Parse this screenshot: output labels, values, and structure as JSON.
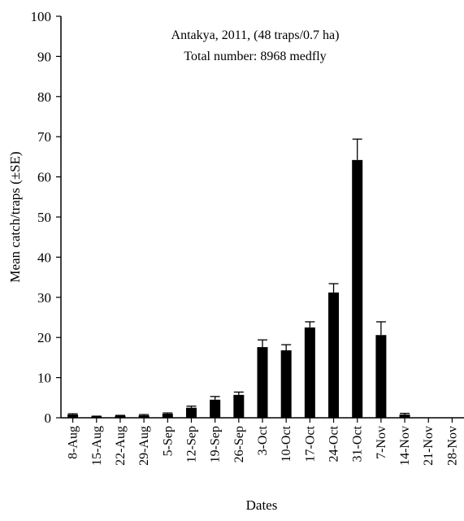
{
  "chart_data": {
    "type": "bar",
    "annotation_lines": [
      "Antakya, 2011, (48 traps/0.7 ha)",
      "Total number: 8968 medfly"
    ],
    "xlabel": "Dates",
    "ylabel": "Mean catch/traps (±SE)",
    "ylim": [
      0,
      100
    ],
    "yticks": [
      0,
      10,
      20,
      30,
      40,
      50,
      60,
      70,
      80,
      90,
      100
    ],
    "grid": false,
    "bar_color": "#000000",
    "categories": [
      "8-Aug",
      "15-Aug",
      "22-Aug",
      "29-Aug",
      "5-Sep",
      "12-Sep",
      "19-Sep",
      "26-Sep",
      "3-Oct",
      "10-Oct",
      "17-Oct",
      "24-Oct",
      "31-Oct",
      "7-Nov",
      "14-Nov",
      "21-Nov",
      "28-Nov"
    ],
    "values": [
      0.8,
      0.3,
      0.5,
      0.6,
      1.0,
      2.5,
      4.5,
      5.7,
      17.6,
      16.8,
      22.5,
      31.2,
      64.2,
      20.6,
      0.8,
      0,
      0
    ],
    "errors": [
      0.2,
      0.1,
      0.1,
      0.2,
      0.2,
      0.4,
      0.8,
      0.7,
      1.8,
      1.4,
      1.4,
      2.2,
      5.2,
      3.3,
      0.3,
      0,
      0
    ]
  }
}
